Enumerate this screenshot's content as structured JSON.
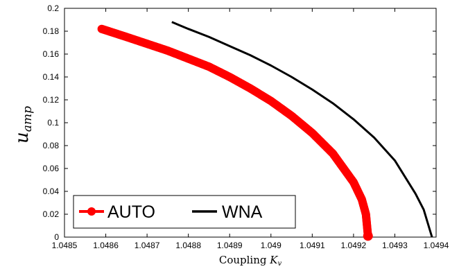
{
  "chart_data": {
    "type": "line",
    "xlabel": "Coupling K_v",
    "xlabel_main": "Coupling ",
    "xlabel_var": "K",
    "xlabel_sub": "v",
    "ylabel": "u_amp",
    "ylabel_var": "u",
    "ylabel_sub": "amp",
    "xlim": [
      1.0485,
      1.0494
    ],
    "ylim": [
      0,
      0.2
    ],
    "xticks": [
      1.0485,
      1.0486,
      1.0487,
      1.0488,
      1.0489,
      1.049,
      1.0491,
      1.0492,
      1.0493,
      1.0494
    ],
    "xtick_labels": [
      "1.0485",
      "1.0486",
      "1.0487",
      "1.0488",
      "1.0489",
      "1.049",
      "1.0491",
      "1.0492",
      "1.0493",
      "1.0494"
    ],
    "yticks": [
      0,
      0.02,
      0.04,
      0.06,
      0.08,
      0.1,
      0.12,
      0.14,
      0.16,
      0.18,
      0.2
    ],
    "ytick_labels": [
      "0",
      "0.02",
      "0.04",
      "0.06",
      "0.08",
      "0.1",
      "0.12",
      "0.14",
      "0.16",
      "0.18",
      "0.2"
    ],
    "grid": false,
    "legend": {
      "placement": "bottom-left",
      "entries": [
        "AUTO",
        "WNA"
      ]
    },
    "series": [
      {
        "name": "AUTO",
        "color": "#ff0000",
        "style": "line-with-circle-markers",
        "x": [
          1.04859,
          1.04865,
          1.0487,
          1.04875,
          1.0488,
          1.04885,
          1.0489,
          1.04895,
          1.049,
          1.04905,
          1.0491,
          1.04915,
          1.0492,
          1.04922,
          1.04923,
          1.049235
        ],
        "y": [
          0.182,
          0.175,
          0.169,
          0.163,
          0.156,
          0.149,
          0.14,
          0.13,
          0.119,
          0.106,
          0.091,
          0.073,
          0.048,
          0.033,
          0.02,
          0.001
        ]
      },
      {
        "name": "WNA",
        "color": "#000000",
        "style": "line",
        "x": [
          1.04876,
          1.0488,
          1.04885,
          1.0489,
          1.04895,
          1.049,
          1.04905,
          1.0491,
          1.04915,
          1.0492,
          1.04925,
          1.0493,
          1.04935,
          1.04937,
          1.04939
        ],
        "y": [
          0.188,
          0.182,
          0.175,
          0.167,
          0.159,
          0.15,
          0.14,
          0.129,
          0.117,
          0.103,
          0.087,
          0.067,
          0.038,
          0.024,
          0.0
        ]
      }
    ]
  }
}
